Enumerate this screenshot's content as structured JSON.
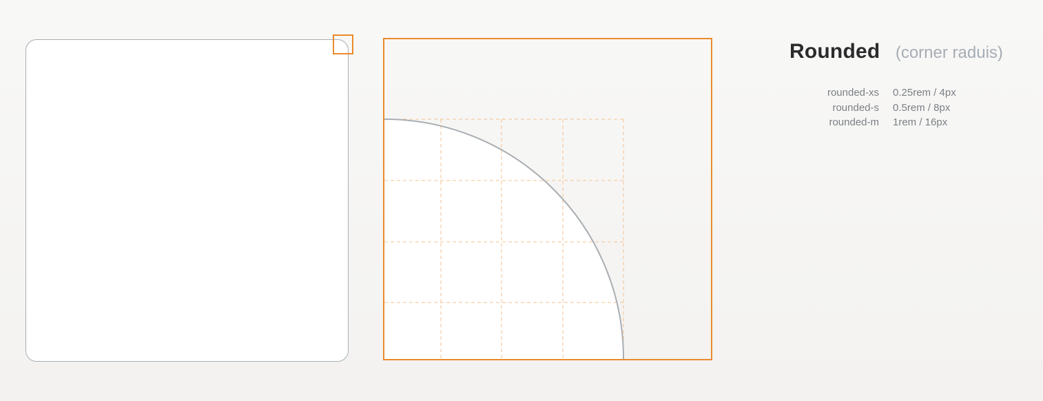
{
  "legend": {
    "title": "Rounded",
    "subtitle": "(corner raduis)",
    "tokens": [
      {
        "name": "rounded-xs",
        "value": "0.25rem / 4px"
      },
      {
        "name": "rounded-s",
        "value": "0.5rem / 8px"
      },
      {
        "name": "rounded-m",
        "value": "1rem / 16px"
      }
    ]
  },
  "colors": {
    "accent_orange": "#ea8a2a",
    "grid_dashed": "#f6c08c",
    "outline_gray": "#a9aeb3",
    "fill_white": "#ffffff"
  },
  "diagram": {
    "zoomed_corner_grid": "4x4",
    "highlight_marker": "top-right corner"
  }
}
